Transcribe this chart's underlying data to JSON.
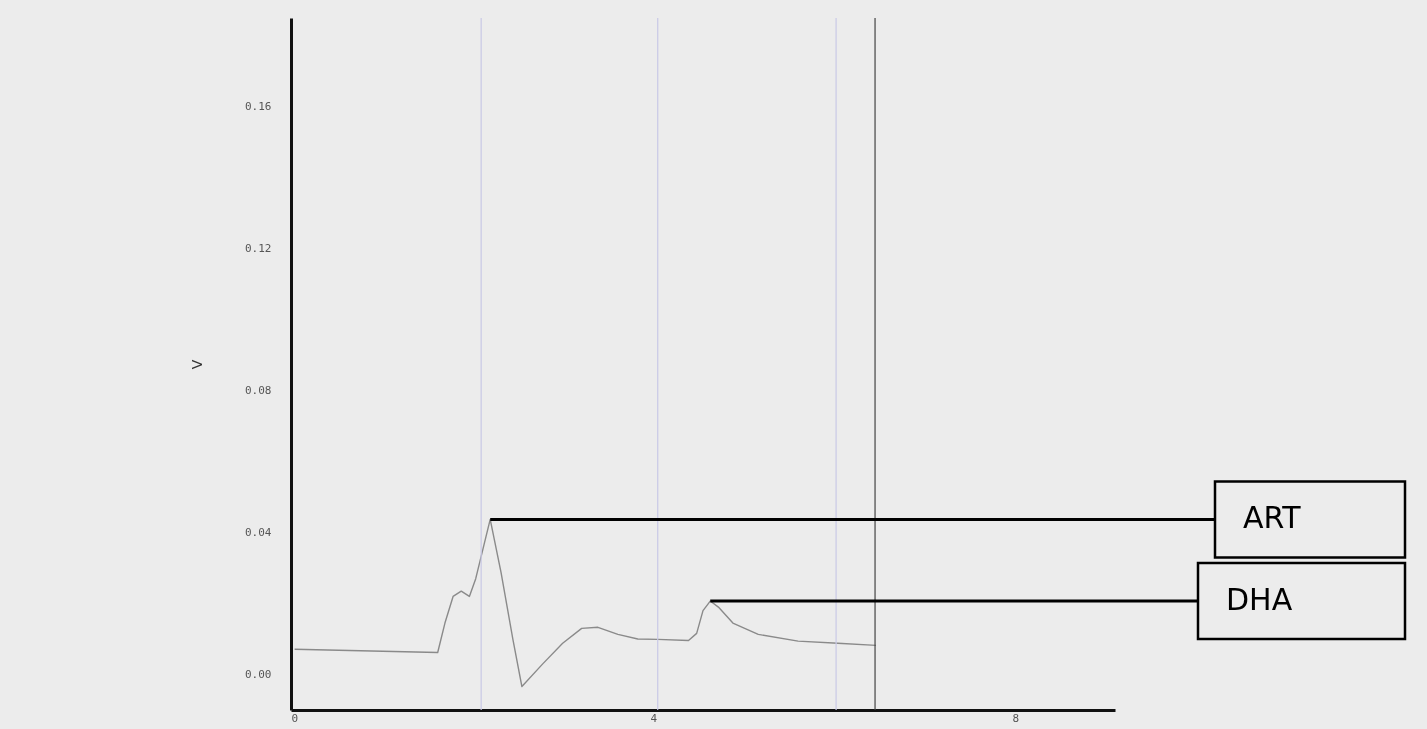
{
  "chart_data": {
    "type": "line",
    "ylabel": "V",
    "x": [
      0.04,
      1.62,
      1.7,
      1.79,
      1.88,
      1.97,
      2.04,
      2.2,
      2.32,
      2.45,
      2.55,
      2.78,
      3.0,
      3.21,
      3.39,
      3.61,
      3.83,
      4.05,
      4.39,
      4.48,
      4.55,
      4.63,
      4.72,
      4.88,
      5.16,
      5.6,
      6.04,
      6.46
    ],
    "series": [
      {
        "color": "#8a8a8a",
        "values": [
          0.0071,
          0.0062,
          0.0145,
          0.022,
          0.0235,
          0.022,
          0.027,
          0.0437,
          0.0287,
          0.01,
          -0.0034,
          0.003,
          0.0088,
          0.013,
          0.0133,
          0.0113,
          0.01,
          0.0099,
          0.0096,
          0.0116,
          0.018,
          0.0207,
          0.019,
          0.0145,
          0.0113,
          0.0094,
          0.0088,
          0.0082
        ]
      }
    ],
    "xlim": [
      0,
      9.1
    ],
    "xticks": [
      0,
      4,
      8
    ],
    "ylim": [
      -0.01,
      0.185
    ],
    "yticks": [
      {
        "value": 0,
        "label": "0.00"
      },
      0.04,
      0.08,
      0.12,
      0.16
    ],
    "ref_lines": [
      {
        "axis": "x",
        "value": 2.1,
        "color": "#c9c9e6"
      },
      {
        "axis": "x",
        "value": 4.05,
        "color": "#c9c9e6"
      },
      {
        "axis": "x",
        "value": 6.02,
        "color": "#c9c9e6"
      },
      {
        "axis": "x",
        "value": 6.45,
        "color": "#444444"
      }
    ],
    "annotations": [
      {
        "text": "ART",
        "x": 2.2,
        "y": 0.0437
      },
      {
        "text": "DHA",
        "x": 4.63,
        "y": 0.0207
      }
    ],
    "grid": false,
    "marker": "none",
    "line_style": "solid"
  }
}
